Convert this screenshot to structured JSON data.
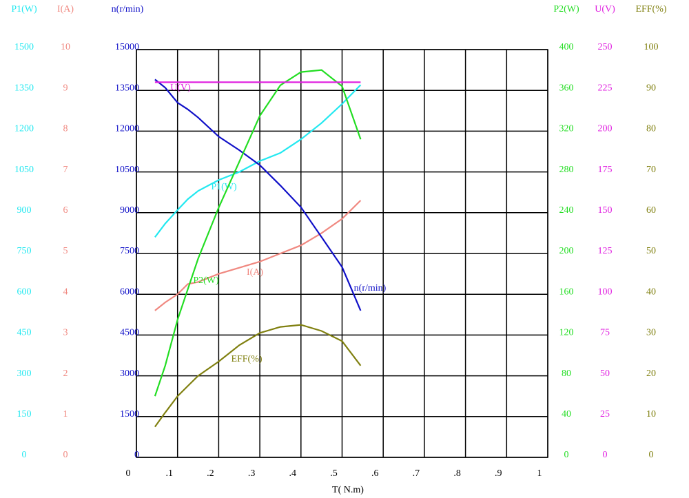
{
  "chart_data": {
    "type": "line",
    "xlabel": "T( N.m)",
    "xlim": [
      0,
      1
    ],
    "xticks": [
      0,
      {
        "value": 0.1,
        "label": ".1"
      },
      {
        "value": 0.2,
        "label": ".2"
      },
      {
        "value": 0.3,
        "label": ".3"
      },
      {
        "value": 0.4,
        "label": ".4"
      },
      {
        "value": 0.5,
        "label": ".5"
      },
      {
        "value": 0.6,
        "label": ".6"
      },
      {
        "value": 0.7,
        "label": ".7"
      },
      {
        "value": 0.8,
        "label": ".8"
      },
      {
        "value": 0.9,
        "label": ".9"
      },
      1
    ],
    "grid": true,
    "x": [
      0.045,
      0.07,
      0.1,
      0.125,
      0.15,
      0.2,
      0.25,
      0.3,
      0.35,
      0.4,
      0.45,
      0.5,
      0.545
    ],
    "series": [
      {
        "name": "P1(W)",
        "axis_label": "P1(W)",
        "color": "#22e8f0",
        "ylim": [
          0,
          1500
        ],
        "yticks": [
          0,
          150,
          300,
          450,
          600,
          750,
          900,
          1050,
          1200,
          1350,
          1500
        ],
        "values": [
          810,
          860,
          910,
          950,
          980,
          1020,
          1050,
          1090,
          1120,
          1170,
          1230,
          1300,
          1370
        ]
      },
      {
        "name": "I(A)",
        "axis_label": "I(A)",
        "color": "#f08880",
        "ylim": [
          0,
          10
        ],
        "yticks": [
          0,
          1,
          2,
          3,
          4,
          5,
          6,
          7,
          8,
          9,
          10
        ],
        "values": [
          3.6,
          3.8,
          4.0,
          4.25,
          4.3,
          4.5,
          4.65,
          4.8,
          5.0,
          5.2,
          5.5,
          5.85,
          6.3
        ]
      },
      {
        "name": "n(r/min)",
        "axis_label": "n(r/min)",
        "color": "#1010c8",
        "ylim": [
          0,
          15000
        ],
        "yticks": [
          0,
          1500,
          3000,
          4500,
          6000,
          7500,
          9000,
          10500,
          12000,
          13500,
          15000
        ],
        "values": [
          13900,
          13600,
          13050,
          12800,
          12500,
          11800,
          11300,
          10750,
          10000,
          9200,
          8100,
          7000,
          5400
        ]
      },
      {
        "name": "P2(W)",
        "axis_label": "P2(W)",
        "color": "#22dd22",
        "ylim": [
          0,
          400
        ],
        "yticks": [
          0,
          40,
          80,
          120,
          160,
          200,
          240,
          280,
          320,
          360,
          400
        ],
        "values": [
          60,
          90,
          135,
          165,
          195,
          245,
          290,
          335,
          365,
          378,
          380,
          364,
          312
        ]
      },
      {
        "name": "U(V)",
        "axis_label": "U(V)",
        "color": "#e020e0",
        "ylim": [
          0,
          250
        ],
        "yticks": [
          0,
          25,
          50,
          75,
          100,
          125,
          150,
          175,
          200,
          225,
          250
        ],
        "values": [
          230,
          230,
          230,
          230,
          230,
          230,
          230,
          230,
          230,
          230,
          230,
          230,
          230
        ]
      },
      {
        "name": "EFF(%)",
        "axis_label": "EFF(%)",
        "color": "#808010",
        "ylim": [
          0,
          100
        ],
        "yticks": [
          0,
          10,
          20,
          30,
          40,
          50,
          60,
          70,
          80,
          90,
          100
        ],
        "values": [
          7.5,
          11,
          15,
          17.5,
          20,
          23.5,
          27.5,
          30.5,
          32,
          32.5,
          31,
          28.5,
          22.5
        ]
      }
    ]
  }
}
